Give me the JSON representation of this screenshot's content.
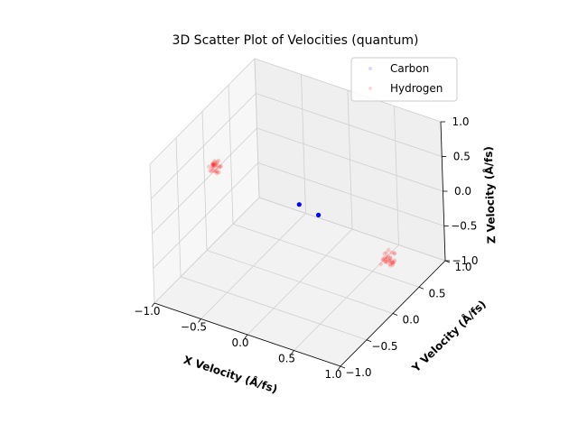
{
  "chart_data": {
    "type": "scatter",
    "projection": "3d",
    "title": "3D Scatter Plot of Velocities (quantum)",
    "xlabel": "X Velocity (Å/fs)",
    "ylabel": "Y Velocity (Å/fs)",
    "zlabel": "Z Velocity (Å/fs)",
    "xlim": [
      -1.0,
      1.0
    ],
    "ylim": [
      -1.0,
      1.0
    ],
    "zlim": [
      -1.0,
      1.0
    ],
    "xticks": [
      "−1.0",
      "−0.5",
      "0.0",
      "0.5",
      "1.0"
    ],
    "yticks": [
      "−1.0",
      "−0.5",
      "0.0",
      "0.5",
      "1.0"
    ],
    "zticks": [
      "−1.0",
      "−0.5",
      "0.0",
      "0.5",
      "1.0"
    ],
    "grid": true,
    "legend": {
      "placement": "top-right",
      "entries": [
        "Carbon",
        "Hydrogen"
      ]
    },
    "series": [
      {
        "name": "Carbon",
        "color": "#0000ff",
        "points": [
          {
            "x": -0.05,
            "y": 0.12,
            "z": 0.0
          },
          {
            "x": 0.12,
            "y": 0.18,
            "z": -0.12
          }
        ]
      },
      {
        "name": "Hydrogen",
        "color": "#ff0000",
        "clusters": [
          {
            "x": -0.82,
            "y": -0.1,
            "z": 0.35,
            "spread": 0.06,
            "count": 30
          },
          {
            "x": 0.7,
            "y": 0.45,
            "z": -0.7,
            "spread": 0.06,
            "count": 30
          }
        ]
      }
    ]
  }
}
